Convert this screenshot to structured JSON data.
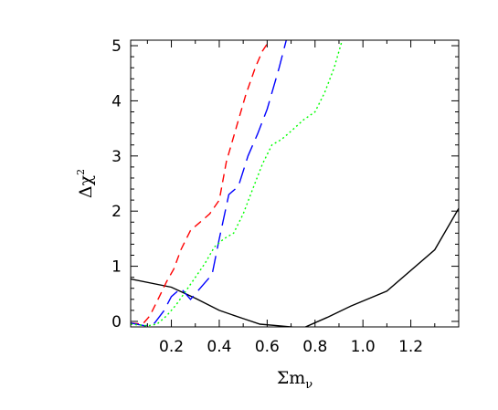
{
  "chart_data": {
    "type": "line",
    "xlabel": "Σm",
    "xlabel_subscript": "ν",
    "ylabel": "Δχ",
    "ylabel_superscript": "2",
    "xlim": [
      0.03,
      1.4
    ],
    "ylim": [
      -0.1,
      5.1
    ],
    "x_ticks": [
      0.2,
      0.4,
      0.6,
      0.8,
      1.0,
      1.2
    ],
    "x_tick_labels": [
      "0.2",
      "0.4",
      "0.6",
      "0.8",
      "1.0",
      "1.2"
    ],
    "y_ticks": [
      0,
      1,
      2,
      3,
      4,
      5
    ],
    "y_tick_labels": [
      "0",
      "1",
      "2",
      "3",
      "4",
      "5"
    ],
    "grid": false,
    "legend": "none",
    "series": [
      {
        "color": "#000000",
        "dash": "solid",
        "points": [
          [
            0.03,
            0.77
          ],
          [
            0.2,
            0.62
          ],
          [
            0.3,
            0.42
          ],
          [
            0.4,
            0.2
          ],
          [
            0.5,
            0.05
          ],
          [
            0.57,
            -0.05
          ],
          [
            0.65,
            -0.08
          ],
          [
            0.75,
            -0.12
          ],
          [
            0.85,
            0.07
          ],
          [
            0.95,
            0.28
          ],
          [
            1.1,
            0.55
          ],
          [
            1.3,
            1.3
          ],
          [
            1.4,
            2.05
          ]
        ]
      },
      {
        "color": "#ff0000",
        "dash": "short-dash",
        "points": [
          [
            0.03,
            -0.03
          ],
          [
            0.08,
            -0.05
          ],
          [
            0.11,
            0.1
          ],
          [
            0.15,
            0.45
          ],
          [
            0.18,
            0.72
          ],
          [
            0.21,
            0.95
          ],
          [
            0.24,
            1.3
          ],
          [
            0.28,
            1.65
          ],
          [
            0.32,
            1.8
          ],
          [
            0.36,
            1.95
          ],
          [
            0.4,
            2.2
          ],
          [
            0.43,
            2.9
          ],
          [
            0.47,
            3.5
          ],
          [
            0.51,
            4.1
          ],
          [
            0.55,
            4.6
          ],
          [
            0.58,
            4.9
          ],
          [
            0.61,
            5.1
          ]
        ]
      },
      {
        "color": "#0000ff",
        "dash": "long-dash",
        "points": [
          [
            0.03,
            -0.03
          ],
          [
            0.09,
            -0.08
          ],
          [
            0.13,
            -0.03
          ],
          [
            0.17,
            0.2
          ],
          [
            0.2,
            0.45
          ],
          [
            0.24,
            0.6
          ],
          [
            0.28,
            0.4
          ],
          [
            0.33,
            0.65
          ],
          [
            0.37,
            0.85
          ],
          [
            0.4,
            1.5
          ],
          [
            0.44,
            2.3
          ],
          [
            0.48,
            2.45
          ],
          [
            0.52,
            3.0
          ],
          [
            0.56,
            3.4
          ],
          [
            0.6,
            3.85
          ],
          [
            0.65,
            4.6
          ],
          [
            0.68,
            5.1
          ]
        ]
      },
      {
        "color": "#00ff00",
        "dash": "dotted",
        "points": [
          [
            0.03,
            -0.05
          ],
          [
            0.1,
            -0.08
          ],
          [
            0.14,
            -0.05
          ],
          [
            0.18,
            0.1
          ],
          [
            0.22,
            0.3
          ],
          [
            0.26,
            0.55
          ],
          [
            0.3,
            0.8
          ],
          [
            0.34,
            1.05
          ],
          [
            0.38,
            1.35
          ],
          [
            0.42,
            1.5
          ],
          [
            0.46,
            1.6
          ],
          [
            0.5,
            1.95
          ],
          [
            0.54,
            2.4
          ],
          [
            0.58,
            2.85
          ],
          [
            0.62,
            3.2
          ],
          [
            0.66,
            3.3
          ],
          [
            0.7,
            3.45
          ],
          [
            0.75,
            3.65
          ],
          [
            0.8,
            3.8
          ],
          [
            0.84,
            4.15
          ],
          [
            0.88,
            4.6
          ],
          [
            0.91,
            5.05
          ]
        ]
      }
    ]
  }
}
